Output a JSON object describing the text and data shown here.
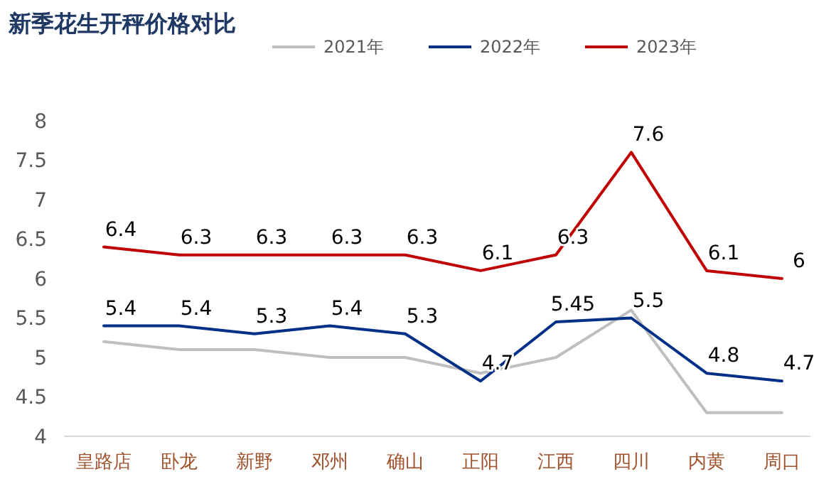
{
  "chart_data": {
    "type": "line",
    "title": "新季花生开秤价格对比",
    "categories": [
      "皇路店",
      "卧龙",
      "新野",
      "邓州",
      "确山",
      "正阳",
      "江西",
      "四川",
      "内黄",
      "周口"
    ],
    "series": [
      {
        "name": "2021年",
        "color": "#bfbfbf",
        "values": [
          5.2,
          5.1,
          5.1,
          5.0,
          5.0,
          4.8,
          5.0,
          5.6,
          4.3,
          4.3
        ]
      },
      {
        "name": "2022年",
        "color": "#002f87",
        "values": [
          5.4,
          5.4,
          5.3,
          5.4,
          5.3,
          4.7,
          5.45,
          5.5,
          4.8,
          4.7
        ],
        "value_labels": [
          "5.4",
          "5.4",
          "5.3",
          "5.4",
          "5.3",
          "4.7",
          "5.45",
          "5.5",
          "4.8",
          "4.7"
        ]
      },
      {
        "name": "2023年",
        "color": "#c00000",
        "values": [
          6.4,
          6.3,
          6.3,
          6.3,
          6.3,
          6.1,
          6.3,
          7.6,
          6.1,
          6
        ],
        "value_labels": [
          "6.4",
          "6.3",
          "6.3",
          "6.3",
          "6.3",
          "6.1",
          "6.3",
          "7.6",
          "6.1",
          "6"
        ]
      }
    ],
    "ylim": [
      4,
      8
    ],
    "yticks": [
      4,
      4.5,
      5,
      5.5,
      6,
      6.5,
      7,
      7.5,
      8
    ],
    "legend": "top",
    "grid": false,
    "marker": "none",
    "line_style": "solid"
  }
}
